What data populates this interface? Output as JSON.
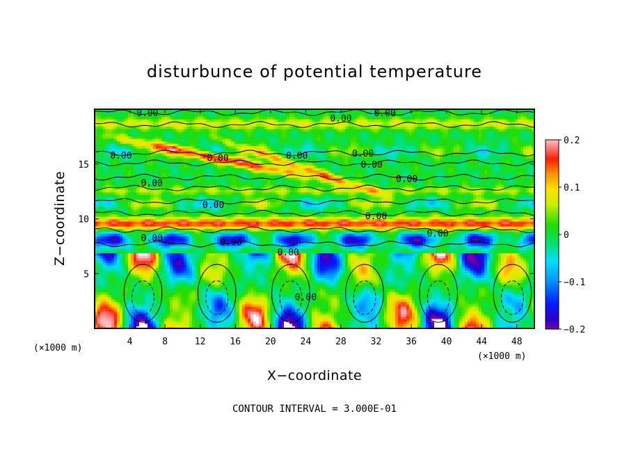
{
  "chart_data": {
    "type": "heatmap",
    "title": "disturbunce of potential temperature",
    "xlabel": "X−coordinate",
    "ylabel": "Z−coordinate",
    "x_unit_left": "(×1000 m)",
    "x_unit_right": "(×1000 m)",
    "xlim": [
      0,
      50
    ],
    "ylim": [
      0,
      20
    ],
    "x_ticks": [
      4,
      8,
      12,
      16,
      20,
      24,
      28,
      32,
      36,
      40,
      44,
      48
    ],
    "y_ticks": [
      5,
      10,
      15
    ],
    "colorbar": {
      "vmin": -0.2,
      "vmax": 0.2,
      "ticks": [
        0.2,
        0.1,
        0,
        -0.1,
        -0.2
      ],
      "tick_labels": [
        "0.2",
        "0.1",
        "0",
        "−0.1",
        "−0.2"
      ]
    },
    "contour_interval_text": "CONTOUR INTERVAL = 3.000E-01",
    "contour_labels": [
      {
        "text": "0.00",
        "x": 6,
        "z": 19.6
      },
      {
        "text": "0.00",
        "x": 33,
        "z": 19.6
      },
      {
        "text": "0.00",
        "x": 28,
        "z": 19.1
      },
      {
        "text": "0.00",
        "x": 3,
        "z": 15.7
      },
      {
        "text": "0.00",
        "x": 14,
        "z": 15.5
      },
      {
        "text": "0.00",
        "x": 23,
        "z": 15.7
      },
      {
        "text": "0.00",
        "x": 30.5,
        "z": 15.9
      },
      {
        "text": "0.00",
        "x": 31.5,
        "z": 14.9
      },
      {
        "text": "0.00",
        "x": 35.5,
        "z": 13.6
      },
      {
        "text": "0.00",
        "x": 6.5,
        "z": 13.2
      },
      {
        "text": "0.00",
        "x": 13.5,
        "z": 11.2
      },
      {
        "text": "0.00",
        "x": 32,
        "z": 10.2
      },
      {
        "text": "0.00",
        "x": 39,
        "z": 8.6
      },
      {
        "text": "0.00",
        "x": 6.5,
        "z": 8.2
      },
      {
        "text": "0.00",
        "x": 15.5,
        "z": 7.8
      },
      {
        "text": "0.00",
        "x": 22,
        "z": 6.9
      },
      {
        "text": "0.00",
        "x": 24,
        "z": 2.8
      }
    ]
  }
}
